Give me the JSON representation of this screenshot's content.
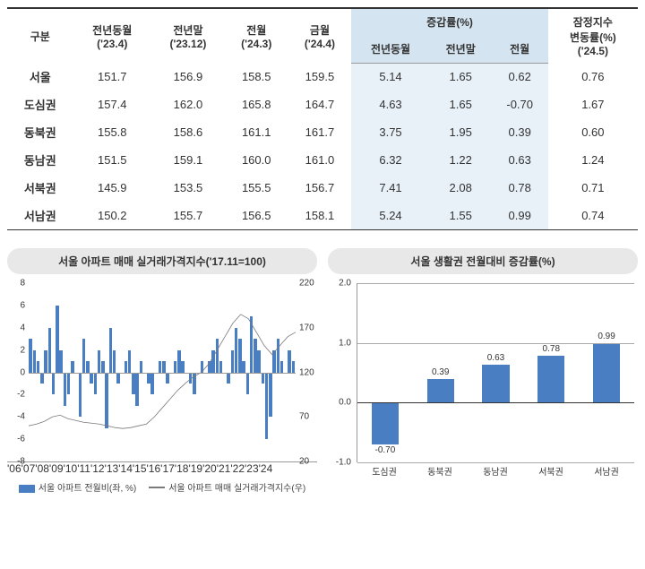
{
  "table": {
    "headers": {
      "region": "구분",
      "prev_year_month": "전년동월",
      "prev_year_month_sub": "('23.4)",
      "prev_year_end": "전년말",
      "prev_year_end_sub": "('23.12)",
      "prev_month": "전월",
      "prev_month_sub": "('24.3)",
      "cur_month": "금월",
      "cur_month_sub": "('24.4)",
      "change_rate": "증감률(%)",
      "cr_pym": "전년동월",
      "cr_pye": "전년말",
      "cr_pm": "전월",
      "provisional": "잠정지수",
      "provisional2": "변동률(%)",
      "provisional3": "('24.5)"
    },
    "shaded_bg": "#e8f0f8",
    "rows": [
      {
        "r": "서울",
        "a": "151.7",
        "b": "156.9",
        "c": "158.5",
        "d": "159.5",
        "e": "5.14",
        "f": "1.65",
        "g": "0.62",
        "h": "0.76"
      },
      {
        "r": "도심권",
        "a": "157.4",
        "b": "162.0",
        "c": "165.8",
        "d": "164.7",
        "e": "4.63",
        "f": "1.65",
        "g": "-0.70",
        "h": "1.67"
      },
      {
        "r": "동북권",
        "a": "155.8",
        "b": "158.6",
        "c": "161.1",
        "d": "161.7",
        "e": "3.75",
        "f": "1.95",
        "g": "0.39",
        "h": "0.60"
      },
      {
        "r": "동남권",
        "a": "151.5",
        "b": "159.1",
        "c": "160.0",
        "d": "161.0",
        "e": "6.32",
        "f": "1.22",
        "g": "0.63",
        "h": "1.24"
      },
      {
        "r": "서북권",
        "a": "145.9",
        "b": "153.5",
        "c": "155.5",
        "d": "156.7",
        "e": "7.41",
        "f": "2.08",
        "g": "0.78",
        "h": "0.71"
      },
      {
        "r": "서남권",
        "a": "150.2",
        "b": "155.7",
        "c": "156.5",
        "d": "158.1",
        "e": "5.24",
        "f": "1.55",
        "g": "0.99",
        "h": "0.74"
      }
    ]
  },
  "chart_left": {
    "title": "서울 아파트 매매 실거래가격지수('17.11=100)",
    "type": "combo-bar-line",
    "left_ylim": [
      -8,
      8
    ],
    "left_yticks": [
      -8,
      -6,
      -4,
      -2,
      0,
      2,
      4,
      6,
      8
    ],
    "right_ylim": [
      20,
      220
    ],
    "right_yticks": [
      20,
      70,
      120,
      170,
      220
    ],
    "bar_color": "#4a7ec2",
    "line_color": "#7a7a7a",
    "background": "#ffffff",
    "xlabels": [
      "'06",
      "'07",
      "'08",
      "'09",
      "'10",
      "'11",
      "'12",
      "'13",
      "'14",
      "'15",
      "'16",
      "'17",
      "'18",
      "'19",
      "'20",
      "'21",
      "'22",
      "'23",
      "'24"
    ],
    "legend": [
      {
        "label": "서울 아파트 전월비(좌, %)",
        "color": "#4a7ec2",
        "type": "bar"
      },
      {
        "label": "서울 아파트 매매 실거래가격지수(우)",
        "color": "#7a7a7a",
        "type": "line"
      }
    ],
    "bars_mom_pct": [
      3,
      2,
      1,
      -1,
      2,
      4,
      -2,
      6,
      2,
      -3,
      -2,
      1,
      0,
      -4,
      3,
      1,
      -1,
      -2,
      2,
      1,
      -5,
      4,
      2,
      -1,
      0,
      1,
      2,
      -2,
      -3,
      1,
      0,
      -1,
      -2,
      0,
      1,
      1,
      -1,
      0,
      1,
      2,
      1,
      0,
      -1,
      -2,
      0,
      1,
      0,
      1,
      2,
      3,
      1,
      0,
      -1,
      2,
      4,
      3,
      1,
      -2,
      5,
      3,
      2,
      -1,
      -6,
      -4,
      2,
      3,
      1,
      0,
      2,
      1
    ],
    "line_index": [
      60,
      62,
      65,
      70,
      72,
      68,
      66,
      64,
      63,
      62,
      60,
      58,
      57,
      58,
      60,
      62,
      70,
      80,
      90,
      100,
      108,
      115,
      120,
      130,
      145,
      160,
      175,
      185,
      180,
      165,
      150,
      140,
      150,
      160,
      165
    ]
  },
  "chart_right": {
    "title": "서울 생활권 전월대비 증감률(%)",
    "type": "bar",
    "ylim": [
      -1.0,
      2.0
    ],
    "yticks": [
      -1.0,
      0.0,
      1.0,
      2.0
    ],
    "bar_color": "#4a7ec2",
    "grid_color": "#aaaaaa",
    "background": "#ffffff",
    "label_fontsize": 10,
    "bars": [
      {
        "label": "도심권",
        "value": -0.7
      },
      {
        "label": "동북권",
        "value": 0.39
      },
      {
        "label": "동남권",
        "value": 0.63
      },
      {
        "label": "서북권",
        "value": 0.78
      },
      {
        "label": "서남권",
        "value": 0.99
      }
    ]
  }
}
